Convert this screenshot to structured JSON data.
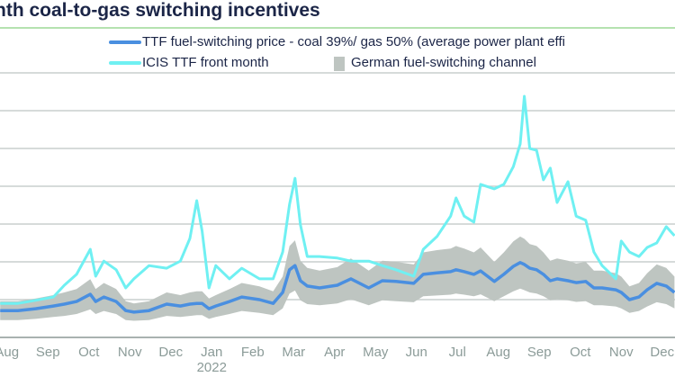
{
  "title": "nth coal-to-gas switching incentives",
  "colors": {
    "fuel_switching": "#4a8fe0",
    "front_month": "#6ff0f2",
    "channel": "#bec5c1",
    "title": "#1b2547",
    "tick": "#8b9b98",
    "grid": "#c9cfcd",
    "accent_rule": "#b5e2b0"
  },
  "chart_data": {
    "type": "line",
    "title": "nth coal-to-gas switching incentives",
    "xlabel": "",
    "ylabel": "",
    "y_tick_labels_shown": false,
    "ylim": [
      0,
      7
    ],
    "grid": true,
    "legend_placement": "top",
    "x_tick_labels": [
      "Aug",
      "Sep",
      "Oct",
      "Nov",
      "Dec",
      "Jan",
      "Feb",
      "Mar",
      "Apr",
      "May",
      "Jun",
      "Jul",
      "Aug",
      "Sep",
      "Oct",
      "Nov",
      "Dec"
    ],
    "x_tick_start": "2021-08",
    "year_label": {
      "text": "2022",
      "under": "Jan"
    },
    "x": [
      "2021-08-11",
      "2021-08-24",
      "2021-09-07",
      "2021-09-20",
      "2021-09-28",
      "2021-10-07",
      "2021-10-17",
      "2021-10-21",
      "2021-10-27",
      "2021-11-06",
      "2021-11-13",
      "2021-11-19",
      "2021-11-30",
      "2021-12-13",
      "2021-12-23",
      "2021-12-30",
      "2022-01-05",
      "2022-01-09",
      "2022-01-14",
      "2022-01-19",
      "2022-01-29",
      "2022-02-08",
      "2022-02-21",
      "2022-03-01",
      "2022-03-08",
      "2022-03-13",
      "2022-03-17",
      "2022-03-21",
      "2022-03-26",
      "2022-04-05",
      "2022-04-18",
      "2022-04-28",
      "2022-05-11",
      "2022-05-21",
      "2022-06-01",
      "2022-06-14",
      "2022-06-21",
      "2022-07-01",
      "2022-07-11",
      "2022-07-15",
      "2022-07-21",
      "2022-07-28",
      "2022-08-03",
      "2022-08-13",
      "2022-08-20",
      "2022-08-27",
      "2022-09-02",
      "2022-09-05",
      "2022-09-09",
      "2022-09-14",
      "2022-09-19",
      "2022-09-24",
      "2022-09-29",
      "2022-10-07",
      "2022-10-13",
      "2022-10-20",
      "2022-10-26",
      "2022-11-02",
      "2022-11-12",
      "2022-11-16",
      "2022-11-22",
      "2022-11-29",
      "2022-12-05",
      "2022-12-12",
      "2022-12-19",
      "2022-12-25"
    ],
    "series": [
      {
        "name": "TTF fuel-switching price - coal 39%/ gas 50% (average power plant effi",
        "kind": "line",
        "values": [
          0.71,
          0.71,
          0.76,
          0.83,
          0.88,
          0.95,
          1.14,
          0.95,
          1.07,
          0.95,
          0.71,
          0.67,
          0.71,
          0.88,
          0.83,
          0.88,
          0.9,
          0.9,
          0.76,
          0.83,
          0.95,
          1.07,
          1.0,
          0.9,
          1.19,
          1.79,
          1.9,
          1.5,
          1.36,
          1.31,
          1.38,
          1.55,
          1.31,
          1.5,
          1.48,
          1.43,
          1.67,
          1.71,
          1.74,
          1.79,
          1.74,
          1.67,
          1.76,
          1.48,
          1.67,
          1.88,
          1.98,
          1.93,
          1.83,
          1.79,
          1.67,
          1.5,
          1.55,
          1.5,
          1.45,
          1.48,
          1.31,
          1.31,
          1.26,
          1.19,
          1.0,
          1.07,
          1.26,
          1.43,
          1.36,
          1.19
        ]
      },
      {
        "name": "ICIS TTF front month",
        "kind": "line",
        "values": [
          0.9,
          0.9,
          0.98,
          1.07,
          1.38,
          1.67,
          2.33,
          1.62,
          2.02,
          1.79,
          1.31,
          1.55,
          1.9,
          1.83,
          2.02,
          2.62,
          3.62,
          2.81,
          1.31,
          1.9,
          1.55,
          1.83,
          1.55,
          1.55,
          2.26,
          3.52,
          4.21,
          2.98,
          2.14,
          2.14,
          2.1,
          2.02,
          2.02,
          1.9,
          1.79,
          1.62,
          2.33,
          2.67,
          3.21,
          3.69,
          3.21,
          3.05,
          4.05,
          3.93,
          4.05,
          4.52,
          5.12,
          6.38,
          5.0,
          4.95,
          4.17,
          4.48,
          3.57,
          4.12,
          3.21,
          3.1,
          2.26,
          1.9,
          1.55,
          2.55,
          2.26,
          2.14,
          2.38,
          2.5,
          2.93,
          2.69
        ]
      },
      {
        "name": "German fuel-switching channel",
        "kind": "band",
        "low": [
          0.46,
          0.46,
          0.49,
          0.54,
          0.57,
          0.62,
          0.74,
          0.62,
          0.7,
          0.62,
          0.46,
          0.44,
          0.46,
          0.57,
          0.54,
          0.57,
          0.59,
          0.59,
          0.49,
          0.54,
          0.62,
          0.7,
          0.65,
          0.59,
          0.77,
          1.16,
          1.24,
          0.98,
          0.88,
          0.85,
          0.9,
          1.01,
          0.85,
          0.98,
          0.96,
          0.93,
          1.09,
          1.11,
          1.13,
          1.16,
          1.13,
          1.09,
          1.14,
          0.96,
          1.09,
          1.22,
          1.29,
          1.25,
          1.19,
          1.16,
          1.09,
          0.98,
          1.01,
          0.98,
          0.94,
          0.96,
          0.85,
          0.85,
          0.82,
          0.77,
          0.65,
          0.7,
          0.82,
          0.93,
          0.88,
          0.77
        ],
        "high": [
          0.96,
          0.96,
          1.03,
          1.12,
          1.19,
          1.28,
          1.54,
          1.28,
          1.44,
          1.28,
          0.96,
          0.9,
          0.96,
          1.19,
          1.12,
          1.19,
          1.22,
          1.22,
          1.03,
          1.12,
          1.28,
          1.44,
          1.35,
          1.22,
          1.61,
          2.42,
          2.57,
          2.03,
          1.84,
          1.77,
          1.86,
          2.09,
          1.77,
          2.03,
          2.0,
          1.93,
          2.25,
          2.31,
          2.35,
          2.42,
          2.35,
          2.25,
          2.38,
          2.0,
          2.25,
          2.54,
          2.67,
          2.61,
          2.47,
          2.42,
          2.25,
          2.03,
          2.09,
          2.03,
          1.96,
          2.0,
          1.77,
          1.77,
          1.7,
          1.61,
          1.35,
          1.44,
          1.7,
          1.93,
          1.84,
          1.61
        ]
      }
    ]
  }
}
